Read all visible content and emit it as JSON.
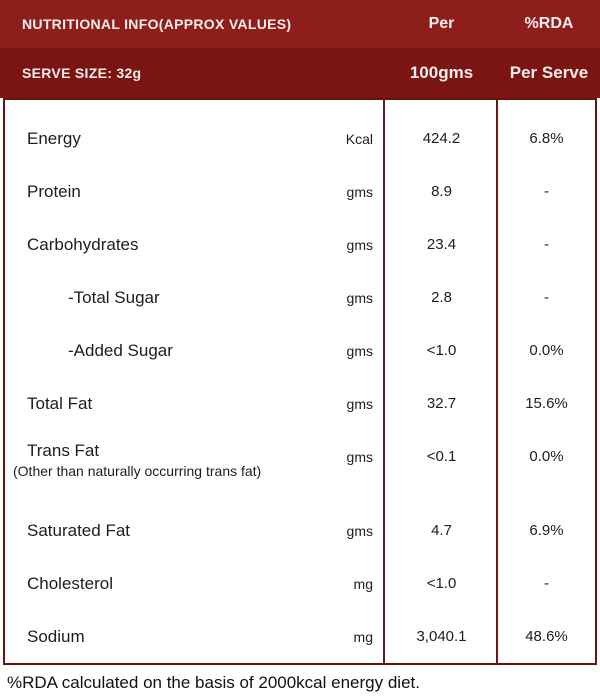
{
  "header": {
    "row1": {
      "title": "NUTRITIONAL INFO(APPROX VALUES)",
      "col1": "Per",
      "col2": "%RDA"
    },
    "row2": {
      "title": "SERVE SIZE: 32g",
      "col1": "100gms",
      "col2": "Per Serve"
    }
  },
  "table": {
    "rows": [
      {
        "label": "Energy",
        "unit": "Kcal",
        "per100": "424.2",
        "rda": "6.8%"
      },
      {
        "label": "Protein",
        "unit": "gms",
        "per100": "8.9",
        "rda": "-"
      },
      {
        "label": "Carbohydrates",
        "unit": "gms",
        "per100": "23.4",
        "rda": "-"
      },
      {
        "label": "-Total Sugar",
        "unit": "gms",
        "per100": "2.8",
        "rda": "-",
        "indent": true
      },
      {
        "label": "-Added Sugar",
        "unit": "gms",
        "per100": "<1.0",
        "rda": "0.0%",
        "indent": true
      },
      {
        "label": "Total Fat",
        "unit": "gms",
        "per100": "32.7",
        "rda": "15.6%"
      },
      {
        "label": "Trans Fat",
        "sublabel": "(Other than naturally occurring trans fat)",
        "unit": "gms",
        "per100": "<0.1",
        "rda": "0.0%"
      },
      {
        "label": "Saturated Fat",
        "unit": "gms",
        "per100": "4.7",
        "rda": "6.9%"
      },
      {
        "label": "Cholesterol",
        "unit": "mg",
        "per100": "<1.0",
        "rda": "-"
      },
      {
        "label": "Sodium",
        "unit": "mg",
        "per100": "3,040.1",
        "rda": "48.6%"
      }
    ]
  },
  "footer": {
    "note": "%RDA calculated on the basis of 2000kcal energy diet."
  },
  "colors": {
    "header_row1_bg": "#8e1e1c",
    "header_row2_bg": "#7a1512",
    "border": "#651210",
    "divider": "#6e1815",
    "header_text": "#f6eeec",
    "body_text": "#1d1d1d"
  }
}
